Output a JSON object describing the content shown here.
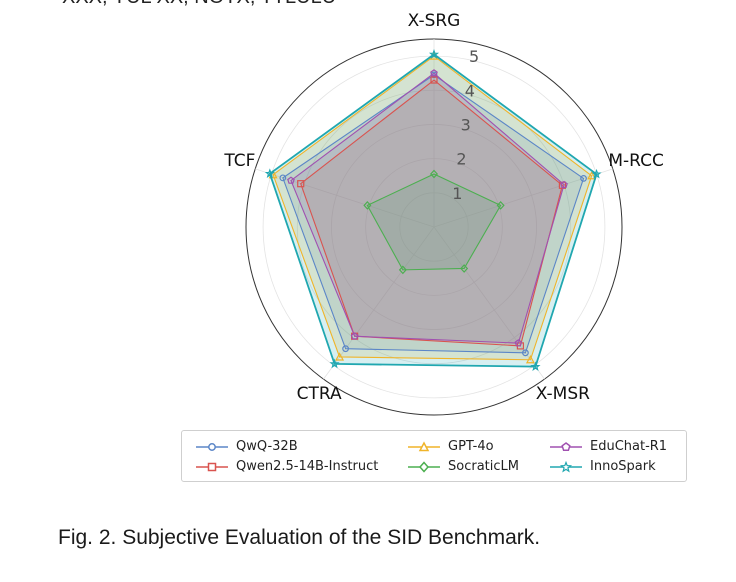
{
  "page": {
    "top_cut_text": "XXX, YUL XX, NOTX, TTLULU",
    "caption": "Fig. 2. Subjective Evaluation of the SID Benchmark."
  },
  "chart_data": {
    "type": "radar",
    "title": "",
    "axes": [
      "X-SRG",
      "M-RCC",
      "X-MSR",
      "CTRA",
      "TCF"
    ],
    "r_ticks": [
      "1",
      "2",
      "3",
      "4",
      "5"
    ],
    "r_range": [
      0,
      5.5
    ],
    "grid": true,
    "legend_position": "bottom",
    "series": [
      {
        "name": "QwQ-32B",
        "color": "#5b86c7",
        "marker": "circle",
        "values": [
          4.45,
          4.6,
          4.55,
          4.4,
          4.65
        ]
      },
      {
        "name": "Qwen2.5-14B-Instruct",
        "color": "#d9534f",
        "marker": "square",
        "values": [
          4.3,
          3.95,
          4.3,
          3.95,
          4.1
        ]
      },
      {
        "name": "GPT-4o",
        "color": "#f0b429",
        "marker": "triangle",
        "values": [
          5.0,
          4.85,
          4.8,
          4.7,
          4.95
        ]
      },
      {
        "name": "SocraticLM",
        "color": "#4caf50",
        "marker": "diamond",
        "values": [
          1.55,
          2.05,
          1.5,
          1.55,
          2.05
        ]
      },
      {
        "name": "EduChat-R1",
        "color": "#a050b0",
        "marker": "pentagon",
        "values": [
          4.5,
          4.0,
          4.2,
          3.95,
          4.4
        ]
      },
      {
        "name": "InnoSpark",
        "color": "#20a7b0",
        "marker": "star",
        "values": [
          5.05,
          5.0,
          5.05,
          4.95,
          5.05
        ]
      }
    ]
  }
}
